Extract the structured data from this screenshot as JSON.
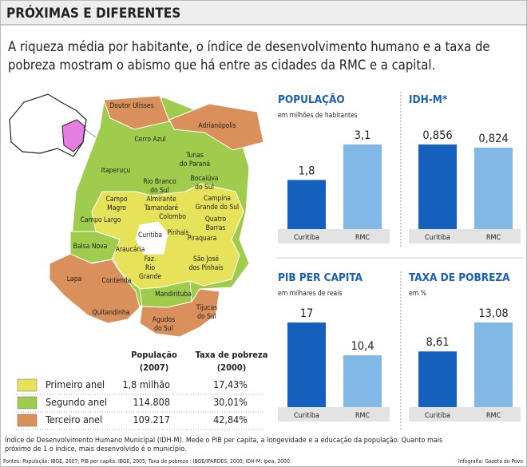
{
  "header": {
    "title": "PRÓXIMAS E DIFERENTES",
    "subtitle": [
      "A riqueza média por habitante, o índice de desenvolvimento humano e a taxa de",
      "pobreza mostram o abismo que há entre as cidades da RMC e a capital."
    ]
  },
  "map": {
    "labels": [
      [
        "Doutor Ulisses"
      ],
      [
        "Adrianópolis"
      ],
      [
        "Cerro Azul"
      ],
      [
        "Tunas",
        "do Paraná"
      ],
      [
        "Itaperuçu"
      ],
      [
        "Rio Branco",
        "do Sul"
      ],
      [
        "Bocaiúva",
        "do Sul"
      ],
      [
        "Campo",
        "Magro"
      ],
      [
        "Almirante",
        "Tamandaré"
      ],
      [
        "Campina",
        "Grande do Sul"
      ],
      [
        "Colombo"
      ],
      [
        "Quatro",
        "Barras"
      ],
      [
        "Campo Largo"
      ],
      [
        "Curitiba"
      ],
      [
        "Pinhais"
      ],
      [
        "Piraquara"
      ],
      [
        "Balsa Nova"
      ],
      [
        "Araucária"
      ],
      [
        "São José",
        "dos Pinhais"
      ],
      [
        "Faz.",
        "Rio",
        "Grande"
      ],
      [
        "Lapa"
      ],
      [
        "Contenda"
      ],
      [
        "Mandirituba"
      ],
      [
        "Quitandinha"
      ],
      [
        "Tijucas",
        "do Sul"
      ],
      [
        "Agudos",
        "do Sul"
      ]
    ]
  },
  "table": {
    "header": [
      [
        "População",
        "(2007)"
      ],
      [
        "Taxa de pobreza",
        "(2000)"
      ]
    ],
    "rows": [
      [
        "Primeiro anel",
        "1,8 milhão",
        "17,43%"
      ],
      [
        "Segundo anel",
        "114.808",
        "30,01%"
      ],
      [
        "Terceiro anel",
        "109.217",
        "42,84%"
      ]
    ],
    "colors": [
      "#e6e35a",
      "#9fcc4c",
      "#d9905a"
    ]
  },
  "chart_data": [
    {
      "type": "bar",
      "title": "POPULAÇÃO",
      "subtitle": "em milhões de habitantes",
      "categories": [
        "Curitiba",
        "RMC"
      ],
      "values": [
        1.8,
        3.1
      ],
      "value_labels": [
        "1,8",
        "3,1"
      ],
      "colors": [
        "#1560bd",
        "#82b8e6"
      ]
    },
    {
      "type": "bar",
      "title": "IDH-M*",
      "categories": [
        "Curitiba",
        "RMC"
      ],
      "values": [
        0.856,
        0.824
      ],
      "value_labels": [
        "0,856",
        "0,824"
      ],
      "colors": [
        "#1560bd",
        "#82b8e6"
      ]
    },
    {
      "type": "bar",
      "title": "PIB PER CAPITA",
      "subtitle": "em milhares de reais",
      "categories": [
        "Curitiba",
        "RMC"
      ],
      "values": [
        17,
        10.4
      ],
      "value_labels": [
        "17",
        "10,4"
      ],
      "colors": [
        "#1560bd",
        "#82b8e6"
      ]
    },
    {
      "type": "bar",
      "title": "TAXA DE POBREZA",
      "subtitle": "em %",
      "categories": [
        "Curitiba",
        "RMC"
      ],
      "values": [
        8.61,
        13.08
      ],
      "value_labels": [
        "8,61",
        "13,08"
      ],
      "colors": [
        "#1560bd",
        "#82b8e6"
      ]
    }
  ],
  "footer": {
    "note": [
      "Índice de Desenvolvimento Humano Municipal (IDH-M). Mede o PIB per capita, a longevidade e a educação da população. Quanto mais",
      "próximo de 1 o índice, mais desenvolvido é o município."
    ],
    "sources": "Fontes: População: IBGE, 2007; PIB per capita: IBGE, 2005; Taxa de pobreza : IBGE/IPARDES, 2000; IDH-M: Ipea, 2000.",
    "credit": "Infografia: Gazeta do Povo"
  }
}
